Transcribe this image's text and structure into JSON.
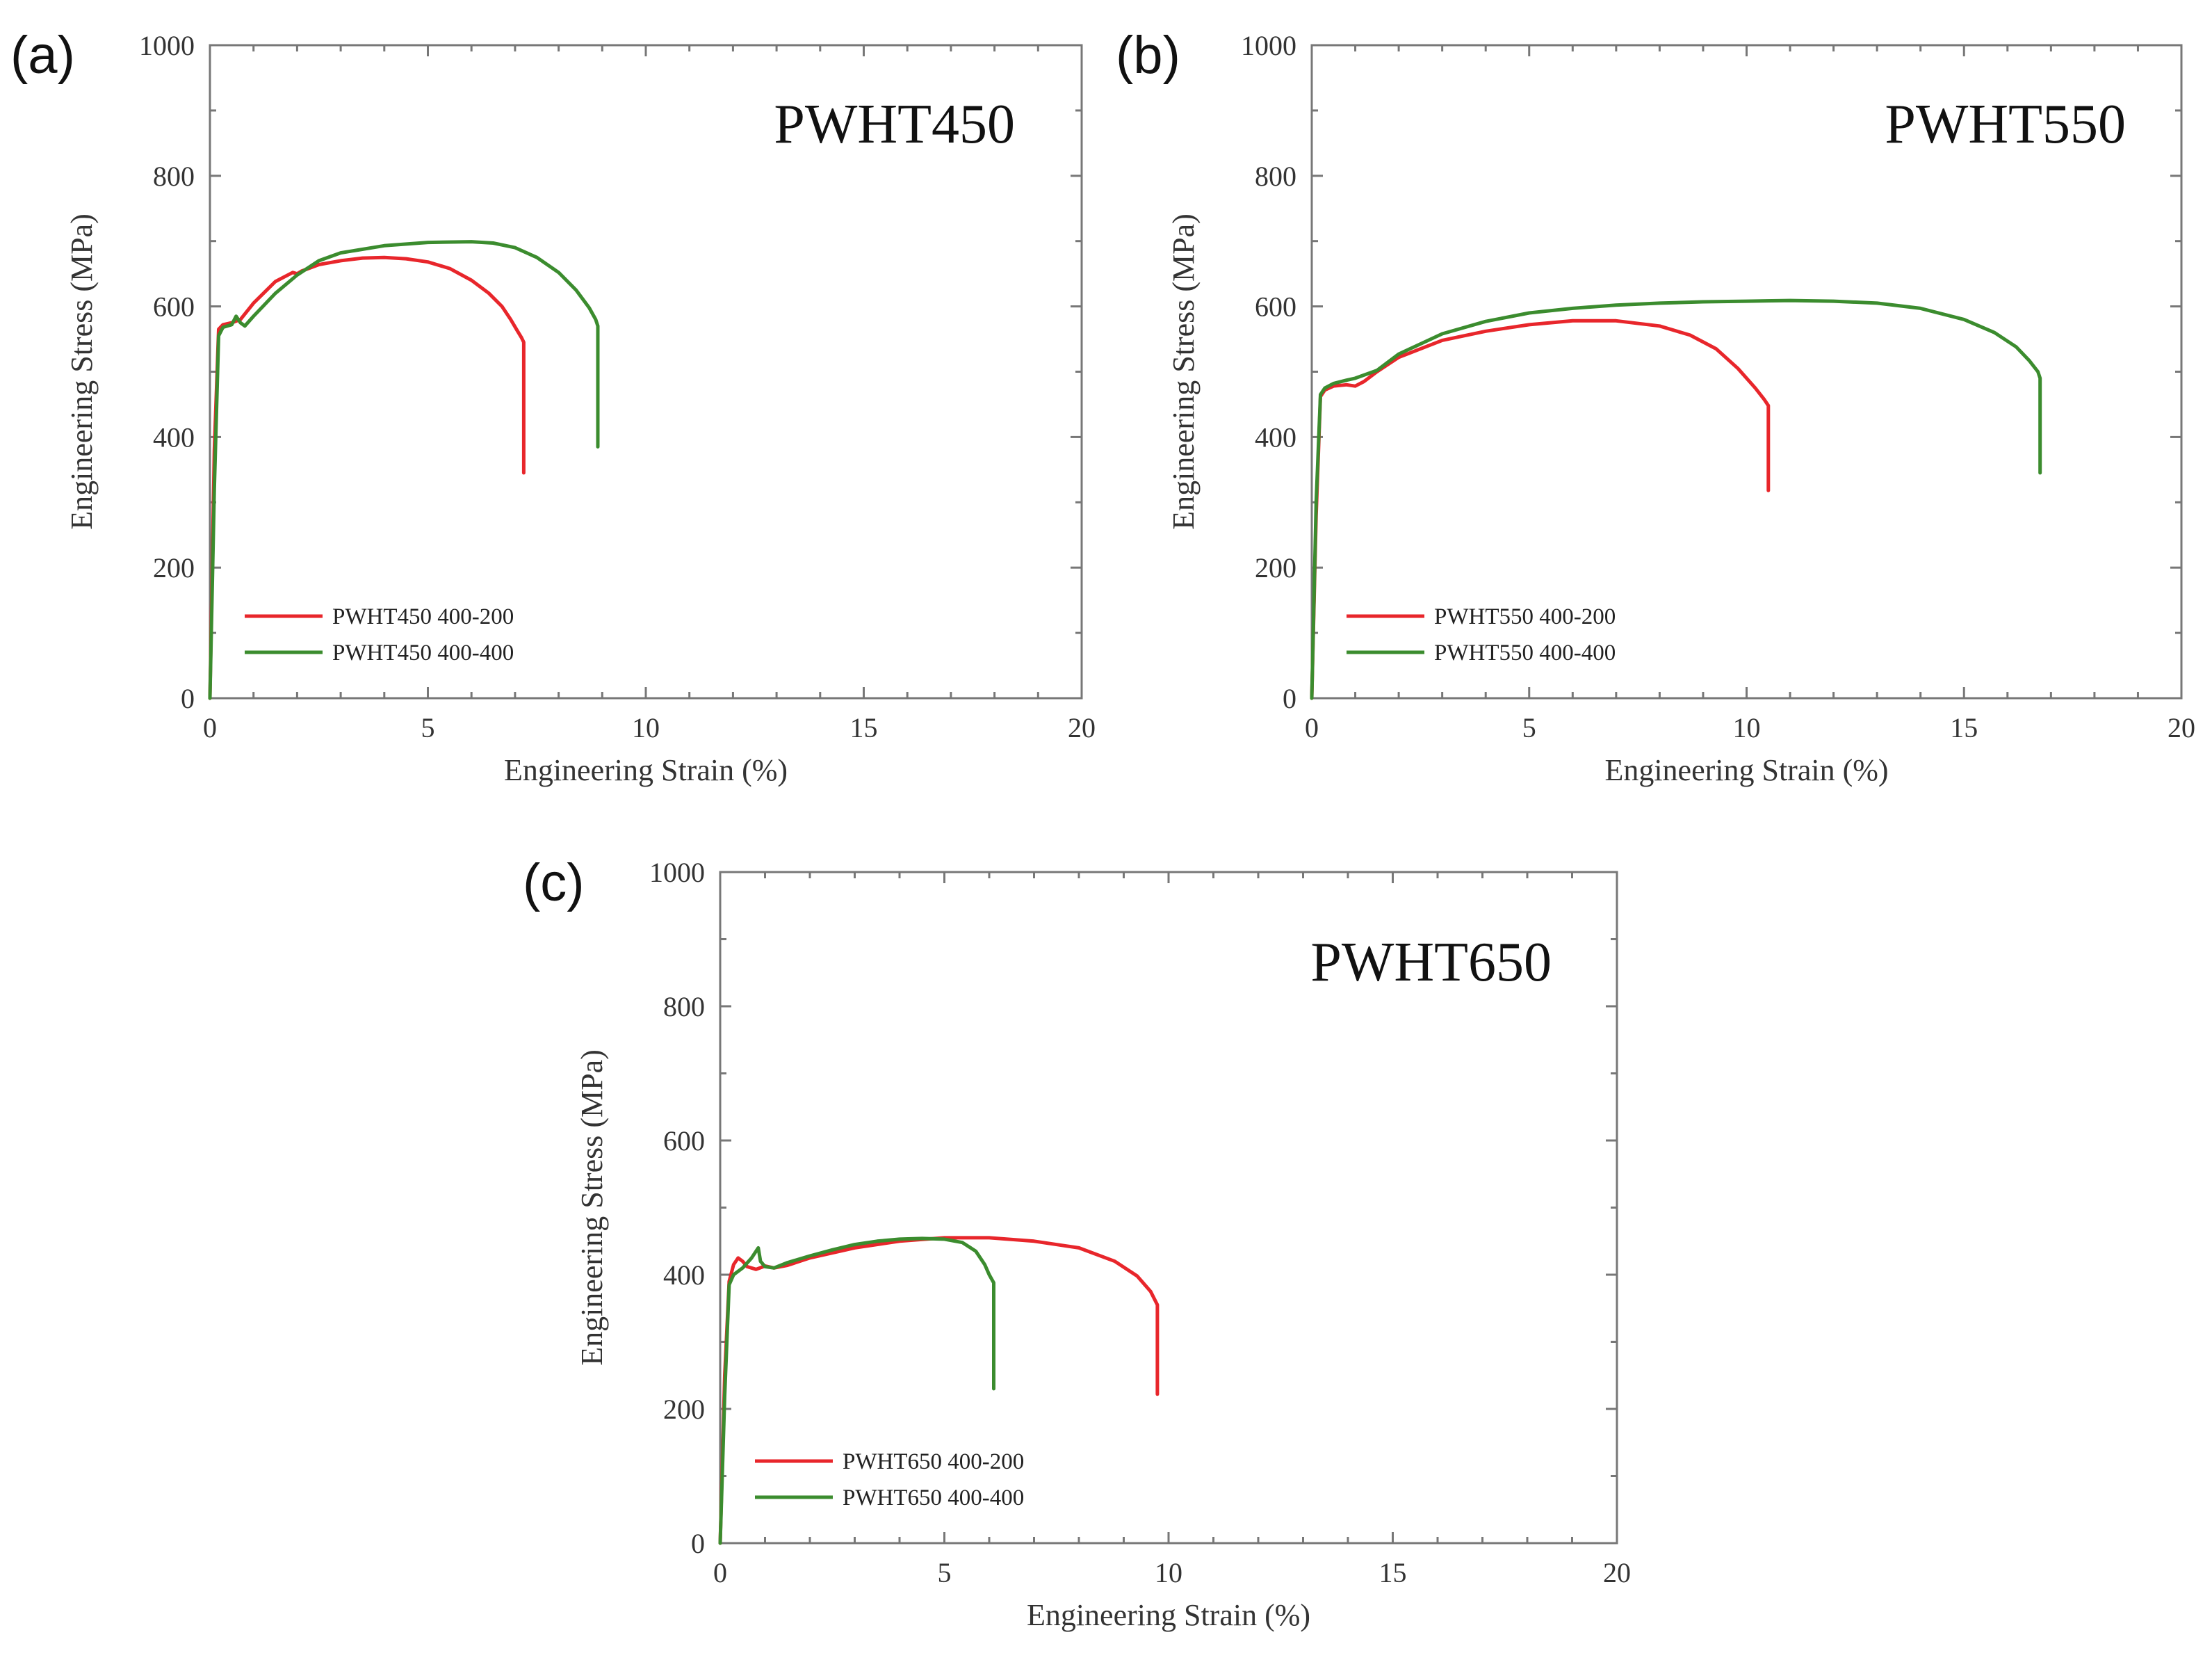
{
  "chart_data": [
    {
      "type": "line",
      "panel_label": "(a)",
      "title": "PWHT450",
      "xlabel": "Engineering Strain (%)",
      "ylabel": "Engineering Stress (MPa)",
      "xlim": [
        0,
        20
      ],
      "ylim": [
        0,
        1000
      ],
      "xticks": [
        0,
        5,
        10,
        15,
        20
      ],
      "yticks": [
        0,
        200,
        400,
        600,
        800,
        1000
      ],
      "legend_position": "lower-left",
      "series": [
        {
          "name": "PWHT450 400-200",
          "color": "#e8262b",
          "x": [
            0,
            0.1,
            0.2,
            0.3,
            0.5,
            0.7,
            1.0,
            1.5,
            1.9,
            2.0,
            2.1,
            2.5,
            3.0,
            3.5,
            4.0,
            4.5,
            5.0,
            5.5,
            6.0,
            6.4,
            6.7,
            6.9,
            7.05,
            7.15,
            7.2,
            7.2
          ],
          "y": [
            0,
            380,
            565,
            572,
            575,
            580,
            605,
            638,
            652,
            650,
            654,
            664,
            670,
            674,
            675,
            673,
            668,
            658,
            640,
            620,
            600,
            580,
            563,
            552,
            545,
            345
          ]
        },
        {
          "name": "PWHT450 400-400",
          "color": "#3b8c2e",
          "x": [
            0,
            0.1,
            0.2,
            0.3,
            0.5,
            0.6,
            0.7,
            0.8,
            1.0,
            1.5,
            2.0,
            2.5,
            3.0,
            4.0,
            5.0,
            6.0,
            6.5,
            7.0,
            7.5,
            8.0,
            8.4,
            8.7,
            8.85,
            8.9,
            8.9
          ],
          "y": [
            0,
            320,
            555,
            568,
            572,
            585,
            575,
            570,
            585,
            620,
            648,
            670,
            682,
            693,
            698,
            699,
            697,
            690,
            675,
            652,
            625,
            598,
            580,
            570,
            385
          ]
        }
      ]
    },
    {
      "type": "line",
      "panel_label": "(b)",
      "title": "PWHT550",
      "xlabel": "Engineering Strain (%)",
      "ylabel": "Engineering Stress (MPa)",
      "xlim": [
        0,
        20
      ],
      "ylim": [
        0,
        1000
      ],
      "xticks": [
        0,
        5,
        10,
        15,
        20
      ],
      "yticks": [
        0,
        200,
        400,
        600,
        800,
        1000
      ],
      "legend_position": "lower-left",
      "series": [
        {
          "name": "PWHT550 400-200",
          "color": "#e8262b",
          "x": [
            0,
            0.1,
            0.2,
            0.3,
            0.5,
            0.8,
            1.0,
            1.2,
            1.5,
            2.0,
            3.0,
            4.0,
            5.0,
            6.0,
            7.0,
            8.0,
            8.7,
            9.3,
            9.8,
            10.2,
            10.4,
            10.5,
            10.5
          ],
          "y": [
            0,
            280,
            462,
            472,
            478,
            480,
            478,
            485,
            500,
            522,
            548,
            562,
            572,
            578,
            578,
            570,
            556,
            535,
            505,
            475,
            458,
            448,
            318
          ]
        },
        {
          "name": "PWHT550 400-400",
          "color": "#3b8c2e",
          "x": [
            0,
            0.1,
            0.2,
            0.3,
            0.5,
            0.8,
            1.0,
            1.5,
            2.0,
            3.0,
            4.0,
            5.0,
            6.0,
            7.0,
            8.0,
            9.0,
            10.0,
            11.0,
            12.0,
            13.0,
            14.0,
            15.0,
            15.7,
            16.2,
            16.5,
            16.7,
            16.75,
            16.75
          ],
          "y": [
            0,
            300,
            465,
            475,
            482,
            487,
            490,
            502,
            527,
            558,
            577,
            590,
            597,
            602,
            605,
            607,
            608,
            609,
            608,
            605,
            597,
            580,
            560,
            538,
            517,
            500,
            490,
            345
          ]
        }
      ]
    },
    {
      "type": "line",
      "panel_label": "(c)",
      "title": "PWHT650",
      "xlabel": "Engineering Strain (%)",
      "ylabel": "Engineering Stress (MPa)",
      "xlim": [
        0,
        20
      ],
      "ylim": [
        0,
        1000
      ],
      "xticks": [
        0,
        5,
        10,
        15,
        20
      ],
      "yticks": [
        0,
        200,
        400,
        600,
        800,
        1000
      ],
      "legend_position": "lower-left",
      "series": [
        {
          "name": "PWHT650 400-200",
          "color": "#e8262b",
          "x": [
            0,
            0.1,
            0.2,
            0.3,
            0.4,
            0.5,
            0.6,
            0.8,
            1.0,
            1.2,
            1.5,
            2.0,
            3.0,
            4.0,
            5.0,
            6.0,
            7.0,
            8.0,
            8.8,
            9.3,
            9.6,
            9.75,
            9.75
          ],
          "y": [
            0,
            250,
            390,
            415,
            425,
            420,
            412,
            408,
            413,
            410,
            414,
            425,
            440,
            450,
            455,
            455,
            450,
            440,
            420,
            398,
            375,
            355,
            222
          ]
        },
        {
          "name": "PWHT650 400-400",
          "color": "#3b8c2e",
          "x": [
            0,
            0.1,
            0.2,
            0.3,
            0.5,
            0.7,
            0.85,
            0.9,
            1.0,
            1.2,
            1.5,
            2.0,
            2.5,
            3.0,
            3.5,
            4.0,
            4.5,
            5.0,
            5.4,
            5.7,
            5.9,
            6.0,
            6.1,
            6.1
          ],
          "y": [
            0,
            220,
            385,
            400,
            410,
            425,
            440,
            420,
            412,
            410,
            418,
            428,
            437,
            445,
            450,
            453,
            454,
            453,
            448,
            435,
            415,
            400,
            388,
            230
          ]
        }
      ]
    }
  ]
}
